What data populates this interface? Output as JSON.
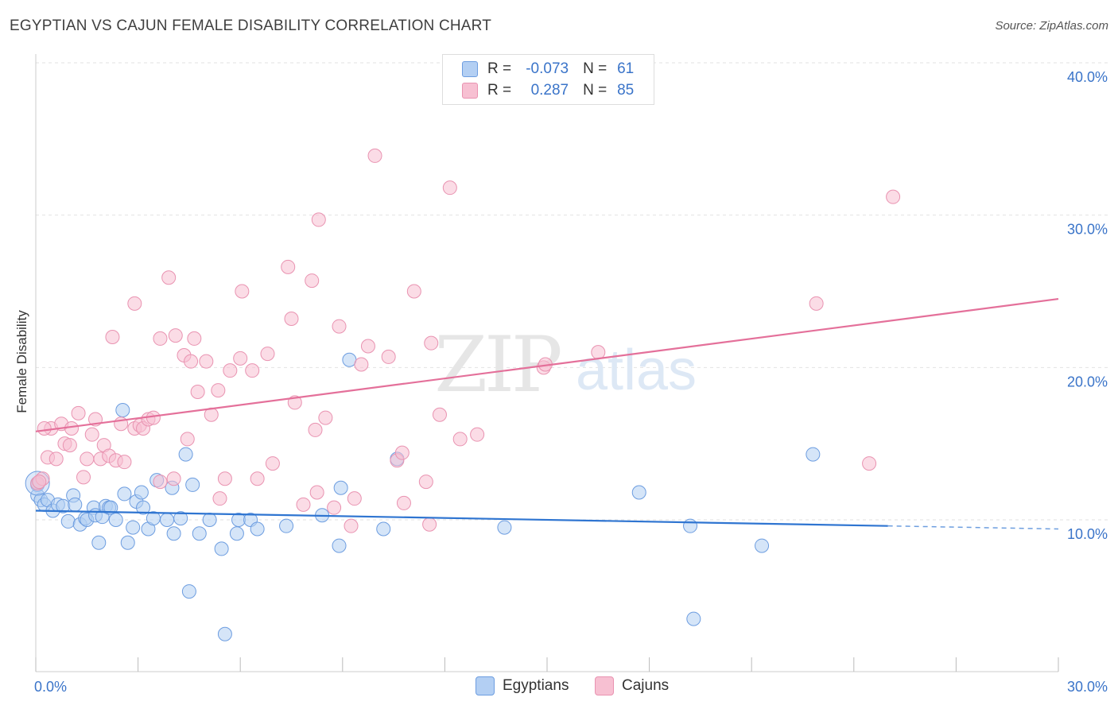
{
  "title": "EGYPTIAN VS CAJUN FEMALE DISABILITY CORRELATION CHART",
  "source": "Source: ZipAtlas.com",
  "watermark": {
    "zip": "ZIP",
    "atlas": "atlas"
  },
  "legend": {
    "r_label": "R =",
    "n_label": "N =",
    "egyptians": {
      "r": "-0.073",
      "n": "61"
    },
    "cajuns": {
      "r": "0.287",
      "n": "85"
    }
  },
  "bottom_legend": {
    "egyptians": "Egyptians",
    "cajuns": "Cajuns"
  },
  "colors": {
    "egyptians_fill": "#b3cff3",
    "egyptians_stroke": "#6d9de0",
    "egyptians_line": "#2f75d1",
    "cajuns_fill": "#f7c0d2",
    "cajuns_stroke": "#e993b1",
    "cajuns_line": "#e4709a",
    "axis_label": "#3a74c9",
    "grid": "#e2e2e2"
  },
  "chart_data": {
    "type": "scatter",
    "title": "EGYPTIAN VS CAJUN FEMALE DISABILITY CORRELATION CHART",
    "ylabel": "Female Disability",
    "xlabel": "",
    "xlim": [
      0,
      30
    ],
    "ylim": [
      0,
      40
    ],
    "x_tick_labels": [
      "0.0%",
      "30.0%"
    ],
    "y_ticks": [
      10,
      20,
      30,
      40
    ],
    "y_tick_labels": [
      "10.0%",
      "20.0%",
      "30.0%",
      "40.0%"
    ],
    "grid": true,
    "legend_position": "top-center",
    "series": [
      {
        "name": "Egyptians",
        "r": -0.073,
        "n": 61,
        "trend": {
          "x0": 0,
          "y0": 10.6,
          "x1": 25.0,
          "y1": 9.6,
          "dashed_to_x": 30,
          "dashed_to_y": 9.4
        },
        "points": [
          [
            0.05,
            12.4
          ],
          [
            0.05,
            11.6
          ],
          [
            0.15,
            11.3
          ],
          [
            0.25,
            11.0
          ],
          [
            0.35,
            11.3
          ],
          [
            0.5,
            10.6
          ],
          [
            0.65,
            11.0
          ],
          [
            0.8,
            10.9
          ],
          [
            0.95,
            9.9
          ],
          [
            1.1,
            11.6
          ],
          [
            1.15,
            11.0
          ],
          [
            1.3,
            9.7
          ],
          [
            1.45,
            10.1
          ],
          [
            1.5,
            10.0
          ],
          [
            1.7,
            10.8
          ],
          [
            1.75,
            10.3
          ],
          [
            1.85,
            8.5
          ],
          [
            1.95,
            10.2
          ],
          [
            2.05,
            10.9
          ],
          [
            2.15,
            10.8
          ],
          [
            2.2,
            10.8
          ],
          [
            2.35,
            10.0
          ],
          [
            2.55,
            17.2
          ],
          [
            2.6,
            11.7
          ],
          [
            2.7,
            8.5
          ],
          [
            2.85,
            9.5
          ],
          [
            2.95,
            11.2
          ],
          [
            3.1,
            11.8
          ],
          [
            3.15,
            10.8
          ],
          [
            3.3,
            9.4
          ],
          [
            3.45,
            10.1
          ],
          [
            3.55,
            12.6
          ],
          [
            3.85,
            10.0
          ],
          [
            4.0,
            12.1
          ],
          [
            4.05,
            9.1
          ],
          [
            4.25,
            10.1
          ],
          [
            4.4,
            14.3
          ],
          [
            4.5,
            5.3
          ],
          [
            4.6,
            12.3
          ],
          [
            4.8,
            9.1
          ],
          [
            5.1,
            10.0
          ],
          [
            5.45,
            8.1
          ],
          [
            5.55,
            2.5
          ],
          [
            5.9,
            9.1
          ],
          [
            5.95,
            10.0
          ],
          [
            6.3,
            10.0
          ],
          [
            6.5,
            9.4
          ],
          [
            7.35,
            9.6
          ],
          [
            8.4,
            10.3
          ],
          [
            8.9,
            8.3
          ],
          [
            8.95,
            12.1
          ],
          [
            9.2,
            20.5
          ],
          [
            10.2,
            9.4
          ],
          [
            10.6,
            14.0
          ],
          [
            13.75,
            9.5
          ],
          [
            17.7,
            11.8
          ],
          [
            19.2,
            9.6
          ],
          [
            19.3,
            3.5
          ],
          [
            21.3,
            8.3
          ],
          [
            22.8,
            14.3
          ],
          [
            0.05,
            12.3
          ]
        ]
      },
      {
        "name": "Cajuns",
        "r": 0.287,
        "n": 85,
        "trend": {
          "x0": 0,
          "y0": 15.8,
          "x1": 30,
          "y1": 24.5
        },
        "points": [
          [
            0.05,
            12.4
          ],
          [
            0.2,
            12.7
          ],
          [
            0.35,
            14.1
          ],
          [
            0.45,
            16.0
          ],
          [
            0.6,
            14.0
          ],
          [
            0.75,
            16.3
          ],
          [
            0.85,
            15.0
          ],
          [
            1.0,
            14.9
          ],
          [
            1.05,
            16.0
          ],
          [
            1.25,
            17.0
          ],
          [
            1.4,
            12.8
          ],
          [
            1.5,
            14.0
          ],
          [
            1.65,
            15.6
          ],
          [
            1.75,
            16.6
          ],
          [
            1.9,
            14.0
          ],
          [
            2.0,
            14.9
          ],
          [
            2.15,
            14.2
          ],
          [
            2.25,
            22.0
          ],
          [
            2.35,
            13.9
          ],
          [
            2.5,
            16.3
          ],
          [
            2.6,
            13.8
          ],
          [
            2.9,
            16.0
          ],
          [
            2.9,
            24.2
          ],
          [
            3.05,
            16.2
          ],
          [
            3.15,
            16.0
          ],
          [
            3.3,
            16.6
          ],
          [
            3.45,
            16.7
          ],
          [
            3.65,
            12.5
          ],
          [
            3.65,
            21.9
          ],
          [
            3.9,
            25.9
          ],
          [
            4.05,
            12.7
          ],
          [
            4.1,
            22.1
          ],
          [
            4.35,
            20.8
          ],
          [
            4.45,
            15.3
          ],
          [
            4.55,
            20.4
          ],
          [
            4.65,
            21.9
          ],
          [
            4.75,
            18.4
          ],
          [
            5.0,
            20.4
          ],
          [
            5.15,
            16.9
          ],
          [
            5.35,
            18.5
          ],
          [
            5.4,
            11.4
          ],
          [
            5.55,
            12.7
          ],
          [
            5.7,
            19.8
          ],
          [
            6.0,
            20.6
          ],
          [
            6.05,
            25.0
          ],
          [
            6.35,
            19.8
          ],
          [
            6.5,
            12.7
          ],
          [
            6.8,
            20.9
          ],
          [
            6.95,
            13.7
          ],
          [
            7.4,
            26.6
          ],
          [
            7.5,
            23.2
          ],
          [
            7.6,
            17.7
          ],
          [
            7.85,
            11.0
          ],
          [
            8.1,
            25.7
          ],
          [
            8.2,
            15.9
          ],
          [
            8.25,
            11.8
          ],
          [
            8.3,
            29.7
          ],
          [
            8.5,
            16.7
          ],
          [
            8.75,
            10.8
          ],
          [
            8.9,
            22.7
          ],
          [
            9.25,
            9.6
          ],
          [
            9.35,
            11.4
          ],
          [
            9.55,
            20.2
          ],
          [
            9.75,
            21.4
          ],
          [
            9.95,
            33.9
          ],
          [
            10.35,
            20.7
          ],
          [
            10.6,
            13.9
          ],
          [
            10.75,
            14.4
          ],
          [
            10.8,
            11.1
          ],
          [
            11.1,
            25.0
          ],
          [
            11.45,
            12.5
          ],
          [
            11.55,
            9.7
          ],
          [
            11.6,
            21.6
          ],
          [
            11.85,
            16.9
          ],
          [
            12.15,
            31.8
          ],
          [
            12.45,
            15.3
          ],
          [
            12.95,
            15.6
          ],
          [
            14.9,
            20.0
          ],
          [
            14.95,
            20.2
          ],
          [
            16.5,
            21.0
          ],
          [
            22.9,
            24.2
          ],
          [
            24.45,
            13.7
          ],
          [
            25.15,
            31.2
          ],
          [
            0.1,
            12.5
          ],
          [
            0.25,
            16.0
          ]
        ]
      }
    ]
  }
}
